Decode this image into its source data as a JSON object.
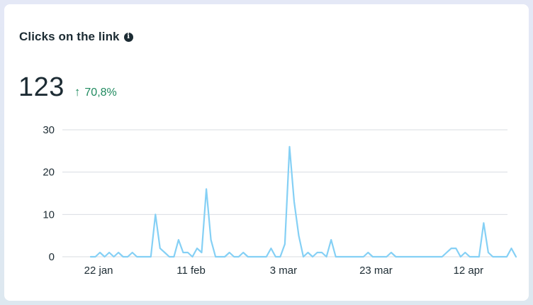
{
  "card": {
    "title": "Clicks on the link",
    "info_icon": "info-icon",
    "info_glyph": "i"
  },
  "metric": {
    "value": "123",
    "change": "70,8%",
    "change_icon": "arrow-up-icon",
    "change_glyph": "↑",
    "change_color": "#1f8a5f"
  },
  "chart_data": {
    "type": "line",
    "xlabel": "",
    "ylabel": "",
    "ylim": [
      0,
      30
    ],
    "y_ticks": [
      "0",
      "10",
      "20",
      "30"
    ],
    "x_tick_labels": [
      "22 jan",
      "11 feb",
      "3 mar",
      "23 mar",
      "12 apr"
    ],
    "x_tick_positions": [
      4,
      24,
      44,
      64,
      84
    ],
    "x_range": [
      0,
      90
    ],
    "line_color": "#85d0f5",
    "grid": true,
    "values": [
      0,
      0,
      1,
      0,
      1,
      0,
      1,
      0,
      0,
      1,
      0,
      0,
      0,
      0,
      10,
      2,
      1,
      0,
      0,
      4,
      1,
      1,
      0,
      2,
      1,
      16,
      4,
      0,
      0,
      0,
      1,
      0,
      0,
      1,
      0,
      0,
      0,
      0,
      0,
      2,
      0,
      0,
      3,
      26,
      13,
      5,
      0,
      1,
      0,
      1,
      1,
      0,
      4,
      0,
      0,
      0,
      0,
      0,
      0,
      0,
      1,
      0,
      0,
      0,
      0,
      1,
      0,
      0,
      0,
      0,
      0,
      0,
      0,
      0,
      0,
      0,
      0,
      1,
      2,
      2,
      0,
      1,
      0,
      0,
      0,
      8,
      1,
      0,
      0,
      0,
      0,
      2,
      0
    ]
  }
}
